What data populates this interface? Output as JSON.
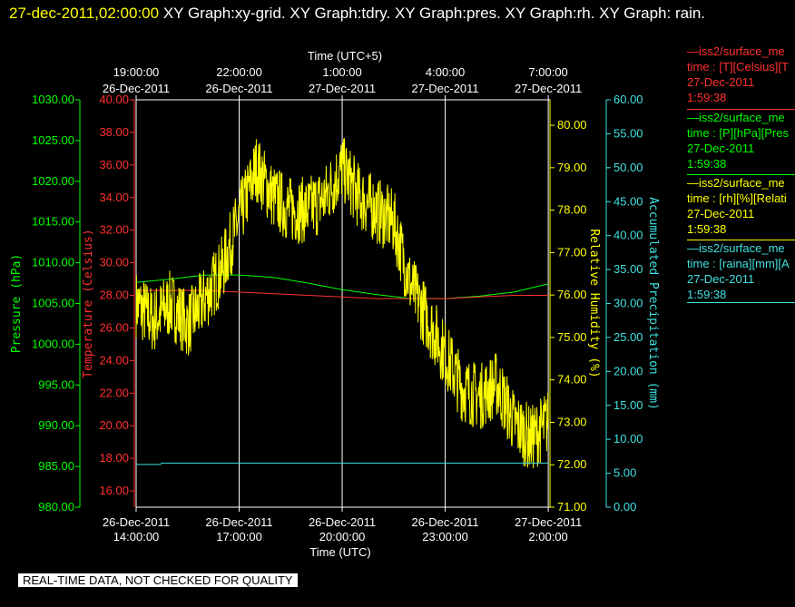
{
  "title": {
    "timestamp": "27-dec-2011,02:00:00",
    "graphs": "XY Graph:xy-grid.  XY Graph:tdry.  XY Graph:pres.  XY Graph:rh.  XY Graph: rain."
  },
  "legend": [
    {
      "line1": "—iss2/surface_me",
      "line2": "time : [T][Celsius][T",
      "line3": "27-Dec-2011",
      "line4": "1:59:38",
      "color": "#ff3030"
    },
    {
      "line1": "—iss2/surface_me",
      "line2": "time : [P][hPa][Pres",
      "line3": "27-Dec-2011",
      "line4": "1:59:38",
      "color": "#00ff00"
    },
    {
      "line1": "—iss2/surface_me",
      "line2": "time : [rh][%][Relati",
      "line3": "27-Dec-2011",
      "line4": "1:59:38",
      "color": "#ffff00"
    },
    {
      "line1": "—iss2/surface_me",
      "line2": "time : [raina][mm][A",
      "line3": "27-Dec-2011",
      "line4": "1:59:38",
      "color": "#40e0e0"
    }
  ],
  "footer": "REAL-TIME DATA, NOT CHECKED FOR QUALITY",
  "chart_data": {
    "type": "line",
    "x_axis_bottom": {
      "label": "Time (UTC)",
      "ticks": [
        {
          "x": 0,
          "line1": "26-Dec-2011",
          "line2": "14:00:00"
        },
        {
          "x": 3,
          "line1": "26-Dec-2011",
          "line2": "17:00:00"
        },
        {
          "x": 6,
          "line1": "26-Dec-2011",
          "line2": "20:00:00"
        },
        {
          "x": 9,
          "line1": "26-Dec-2011",
          "line2": "23:00:00"
        },
        {
          "x": 12,
          "line1": "27-Dec-2011",
          "line2": "2:00:00"
        }
      ]
    },
    "x_axis_top": {
      "label": "Time (UTC+5)",
      "ticks": [
        {
          "x": 0,
          "line1": "19:00:00",
          "line2": "26-Dec-2011"
        },
        {
          "x": 3,
          "line1": "22:00:00",
          "line2": "26-Dec-2011"
        },
        {
          "x": 6,
          "line1": "1:00:00",
          "line2": "27-Dec-2011"
        },
        {
          "x": 9,
          "line1": "4:00:00",
          "line2": "27-Dec-2011"
        },
        {
          "x": 12,
          "line1": "7:00:00",
          "line2": "27-Dec-2011"
        }
      ]
    },
    "x_range": [
      0,
      12.05
    ],
    "grid": true,
    "y_axes": [
      {
        "id": "pres",
        "label": "Pressure (hPa)",
        "color": "#00ff00",
        "range": [
          980,
          1030
        ],
        "ticks": [
          "980.00",
          "985.00",
          "990.00",
          "995.00",
          "1000.00",
          "1005.00",
          "1010.00",
          "1015.00",
          "1020.00",
          "1025.00",
          "1030.00"
        ]
      },
      {
        "id": "temp",
        "label": "Temperature (Celsius)",
        "color": "#ff3030",
        "range": [
          15,
          40
        ],
        "ticks": [
          "16.00",
          "18.00",
          "20.00",
          "22.00",
          "24.00",
          "26.00",
          "28.00",
          "30.00",
          "32.00",
          "34.00",
          "36.00",
          "38.00",
          "40.00"
        ]
      },
      {
        "id": "rh",
        "label": "Relative Humidity (%)",
        "color": "#ffff00",
        "range": [
          71,
          80.6
        ],
        "ticks": [
          "71.00",
          "72.00",
          "73.00",
          "74.00",
          "75.00",
          "76.00",
          "77.00",
          "78.00",
          "79.00",
          "80.00"
        ]
      },
      {
        "id": "rain",
        "label": "Accumulated Precipitation (mm)",
        "color": "#40e0e0",
        "range": [
          0,
          60
        ],
        "ticks": [
          "0.00",
          "5.00",
          "10.00",
          "15.00",
          "20.00",
          "25.00",
          "30.00",
          "35.00",
          "40.00",
          "45.00",
          "50.00",
          "55.00",
          "60.00"
        ]
      }
    ],
    "series": [
      {
        "axis": "pres",
        "color": "#00ff00",
        "x": [
          0,
          1,
          2,
          3,
          4,
          5,
          6,
          7,
          8,
          9,
          10,
          11,
          12
        ],
        "values": [
          1007.6,
          1008.0,
          1008.5,
          1008.5,
          1008.2,
          1007.5,
          1006.7,
          1006.1,
          1005.6,
          1005.6,
          1005.9,
          1006.4,
          1007.4
        ]
      },
      {
        "axis": "temp",
        "color": "#ff3030",
        "x": [
          0,
          1,
          2,
          3,
          4,
          5,
          6,
          7,
          8,
          9,
          10,
          11,
          12
        ],
        "values": [
          28.3,
          28.3,
          28.3,
          28.2,
          28.1,
          28.0,
          27.9,
          27.8,
          27.8,
          27.8,
          27.9,
          28.0,
          28.0
        ]
      },
      {
        "axis": "rh",
        "color": "#ffff00",
        "x": [
          0,
          0.5,
          1,
          1.5,
          2,
          2.5,
          3,
          3.5,
          4,
          4.5,
          5,
          5.5,
          6,
          6.5,
          7,
          7.5,
          8,
          8.5,
          9,
          9.5,
          10,
          10.5,
          11,
          11.5,
          12
        ],
        "values": [
          75.8,
          75.4,
          75.8,
          75.3,
          75.9,
          76.6,
          77.8,
          79.0,
          78.3,
          78.0,
          78.0,
          78.3,
          79.0,
          78.3,
          78.0,
          77.7,
          76.2,
          75.4,
          74.6,
          73.8,
          73.6,
          73.9,
          73.0,
          72.6,
          73.0
        ]
      },
      {
        "axis": "rain",
        "color": "#40e0e0",
        "x": [
          0,
          0.7,
          0.75,
          12
        ],
        "values": [
          6.3,
          6.3,
          6.5,
          6.5
        ]
      }
    ]
  }
}
